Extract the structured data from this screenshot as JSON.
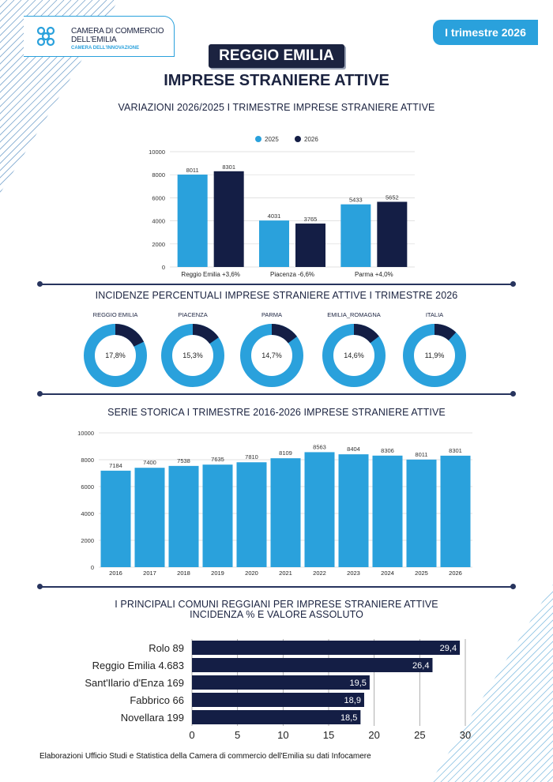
{
  "header": {
    "logo_line1": "CAMERA DI COMMERCIO",
    "logo_line2": "DELL'EMILIA",
    "logo_sub": "CAMERA DELL'INNOVAZIONE",
    "period_badge": "I trimestre 2026",
    "province": "REGGIO EMILIA",
    "title": "IMPRESE STRANIERE ATTIVE"
  },
  "colors": {
    "light": "#2aa1dc",
    "dark": "#141e45",
    "navy": "#1b2340"
  },
  "sections": {
    "variations_title": "VARIAZIONI 2026/2025 I TRIMESTRE IMPRESE STRANIERE ATTIVE",
    "incidence_title": "INCIDENZE PERCENTUALI IMPRESE STRANIERE ATTIVE I TRIMESTRE 2026",
    "series_title": "SERIE STORICA I TRIMESTRE 2016-2026 IMPRESE STRANIERE ATTIVE",
    "comuni_title_1": "I PRINCIPALI COMUNI REGGIANI PER IMPRESE STRANIERE ATTIVE",
    "comuni_title_2": "INCIDENZA % E VALORE ASSOLUTO"
  },
  "footnote": "Elaborazioni Ufficio Studi e Statistica della Camera di commercio dell'Emilia su dati Infocamere",
  "chart_data": [
    {
      "type": "bar",
      "categories": [
        "Reggio Emilia +3,6%",
        "Piacenza -6,6%",
        "Parma +4,0%"
      ],
      "series": [
        {
          "name": "2025",
          "values": [
            8011,
            4031,
            5433
          ]
        },
        {
          "name": "2026",
          "values": [
            8301,
            3765,
            5652
          ]
        }
      ],
      "ylim": [
        0,
        10000
      ],
      "yticks": [
        0,
        2000,
        4000,
        6000,
        8000,
        10000
      ],
      "grid": true,
      "legend": "top-center"
    },
    {
      "type": "pie",
      "donut": true,
      "items": [
        {
          "label": "REGGIO EMILIA",
          "value": 17.8,
          "text": "17,8%"
        },
        {
          "label": "PIACENZA",
          "value": 15.3,
          "text": "15,3%"
        },
        {
          "label": "PARMA",
          "value": 14.7,
          "text": "14,7%"
        },
        {
          "label": "EMILIA_ROMAGNA",
          "value": 14.6,
          "text": "14,6%"
        },
        {
          "label": "ITALIA",
          "value": 11.9,
          "text": "11,9%"
        }
      ]
    },
    {
      "type": "bar",
      "categories": [
        "2016",
        "2017",
        "2018",
        "2019",
        "2020",
        "2021",
        "2022",
        "2023",
        "2024",
        "2025",
        "2026"
      ],
      "values": [
        7184,
        7400,
        7538,
        7635,
        7810,
        8109,
        8563,
        8404,
        8306,
        8011,
        8301
      ],
      "ylim": [
        0,
        10000
      ],
      "yticks": [
        0,
        2000,
        4000,
        6000,
        8000,
        10000
      ],
      "grid": true
    },
    {
      "type": "bar",
      "orientation": "horizontal",
      "categories": [
        "Rolo 89",
        "Reggio Emilia 4.683",
        "Sant'Ilario d'Enza 169",
        "Fabbrico 66",
        "Novellara 199"
      ],
      "values": [
        29.4,
        26.4,
        19.5,
        18.9,
        18.5
      ],
      "value_labels": [
        "29,4",
        "26,4",
        "19,5",
        "18,9",
        "18,5"
      ],
      "xlim": [
        0,
        30
      ],
      "xticks": [
        0,
        5,
        10,
        15,
        20,
        25,
        30
      ],
      "grid": true
    }
  ]
}
